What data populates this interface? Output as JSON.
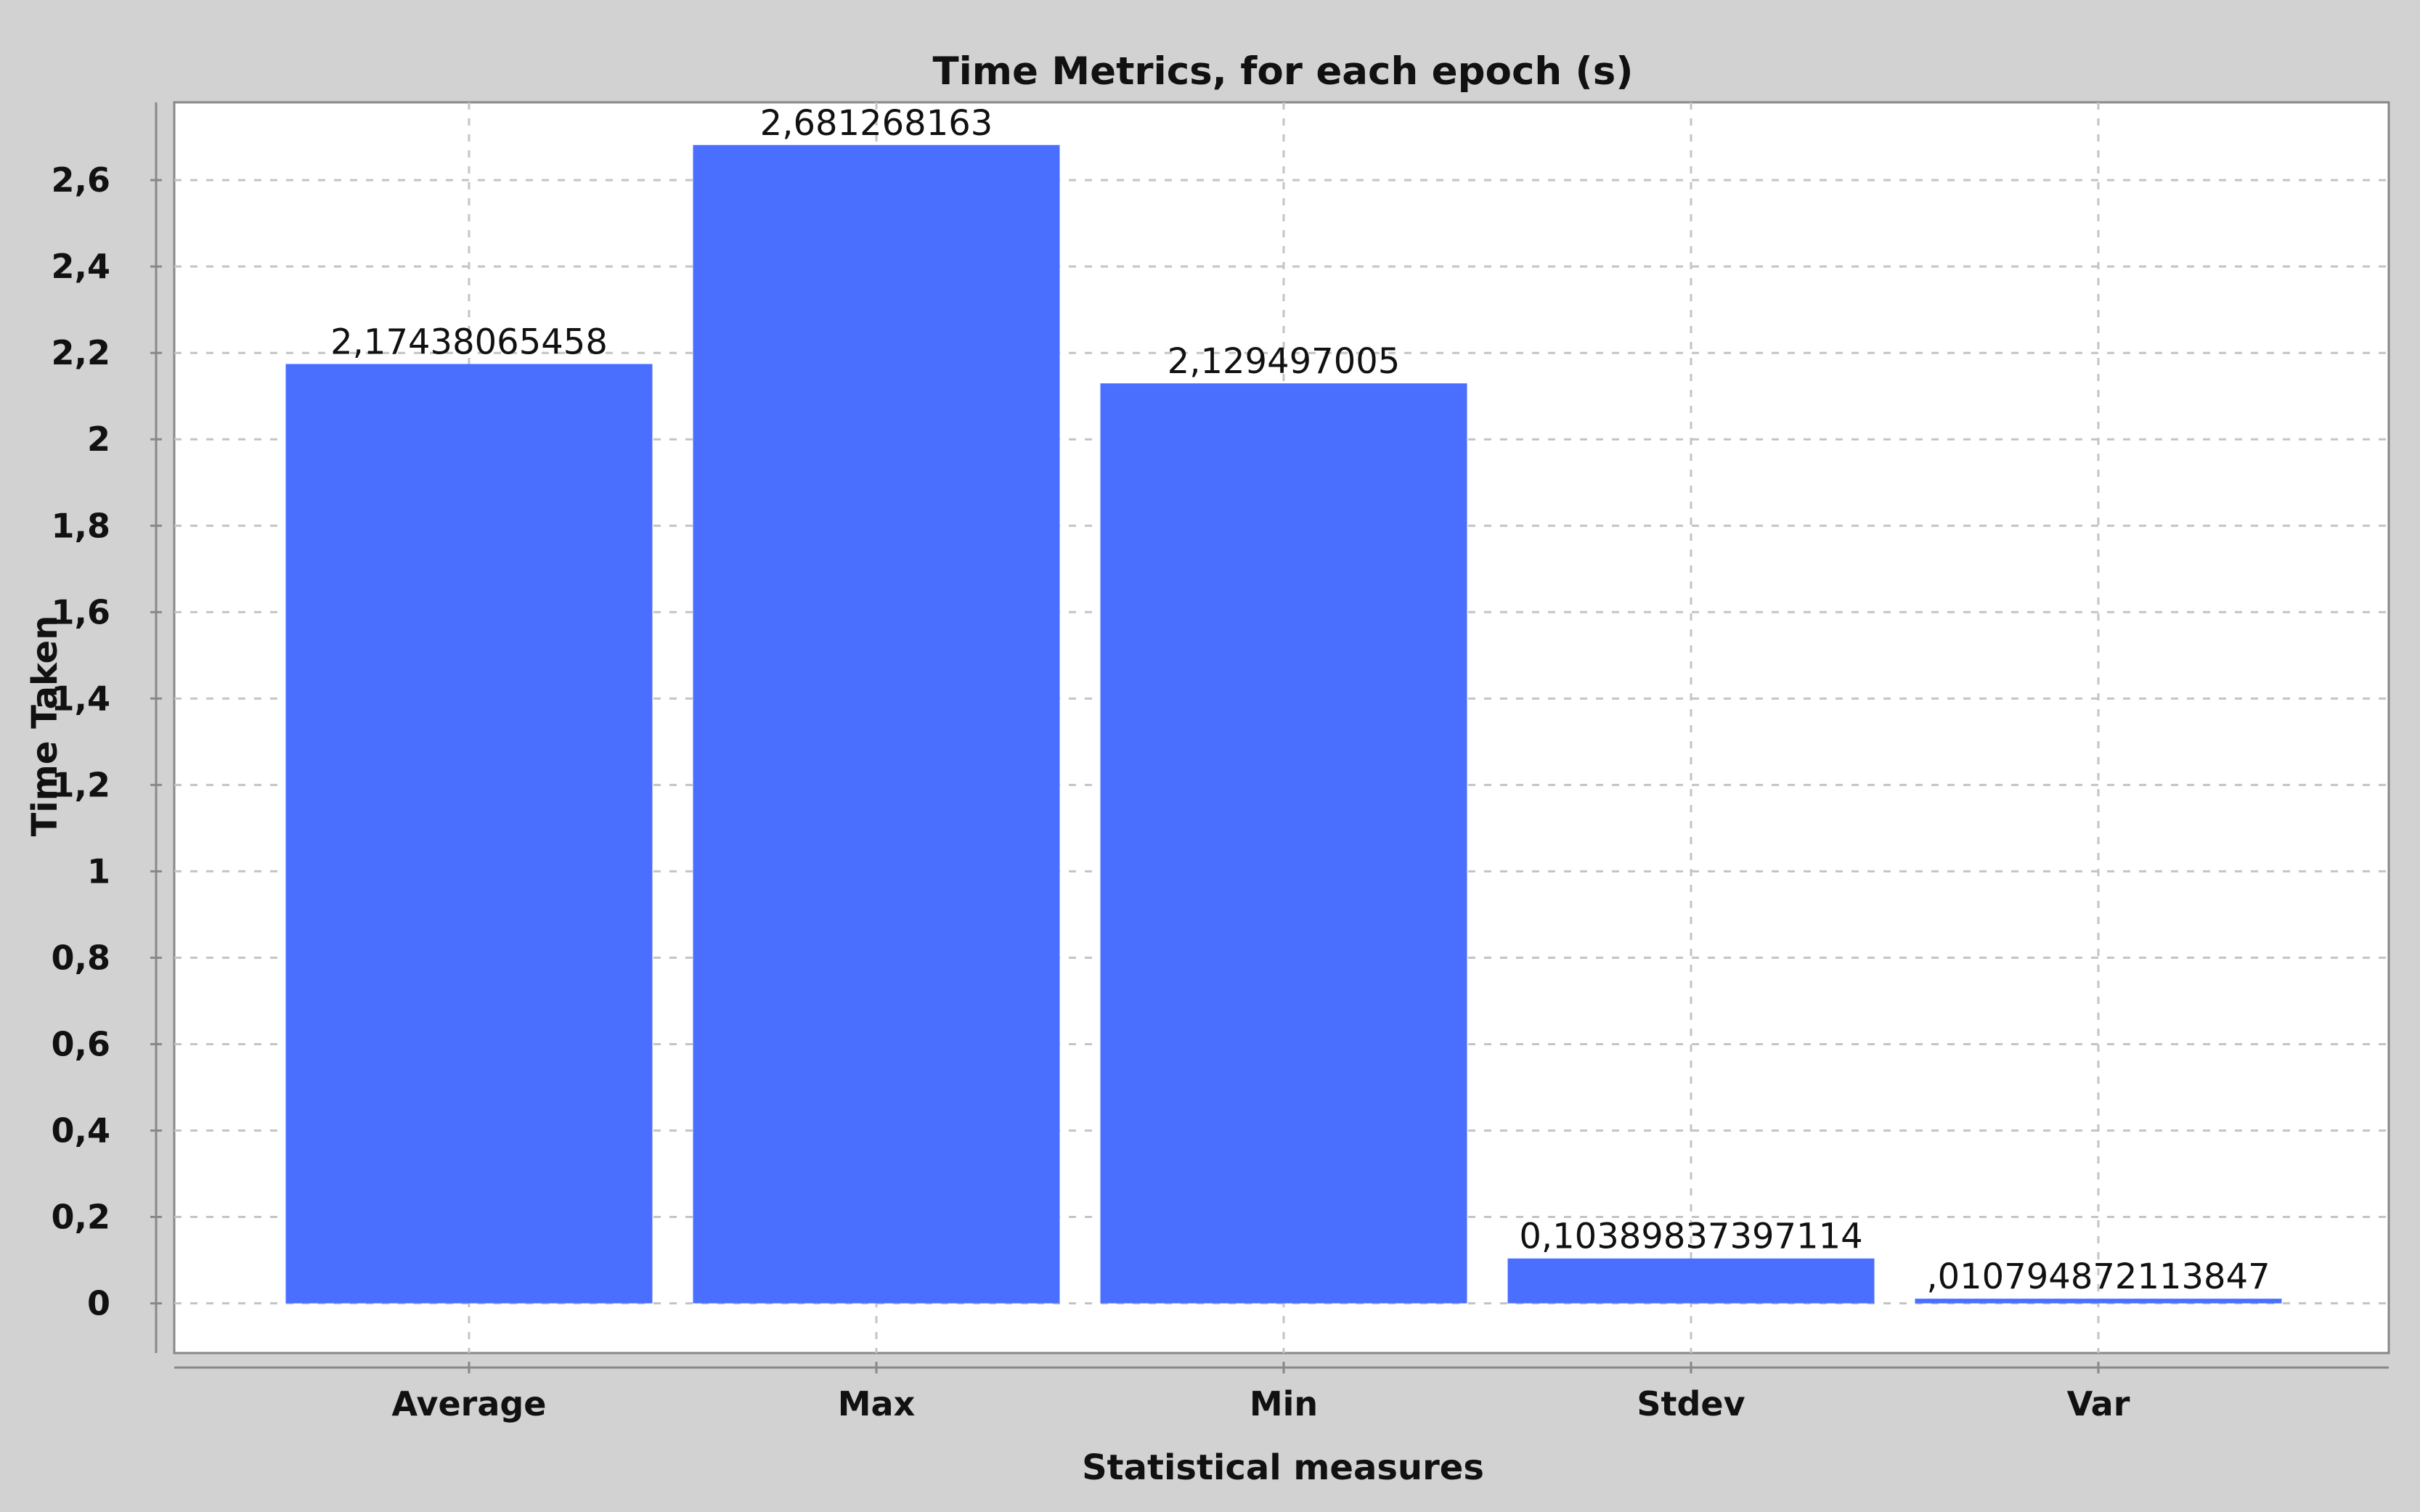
{
  "chart_data": {
    "type": "bar",
    "title": "Time Metrics, for each epoch (s)",
    "xlabel": "Statistical measures",
    "ylabel": "Time Taken",
    "categories": [
      "Average",
      "Max",
      "Min",
      "Stdev",
      "Var"
    ],
    "values": [
      2.17438065458,
      2.681268163,
      2.129497005,
      0.10389837397114,
      0.010794872113847
    ],
    "value_labels": [
      "2,17438065458",
      "2,681268163",
      "2,129497005",
      "0,10389837397114",
      ",010794872113847"
    ],
    "ylim": [
      -0.115,
      2.78
    ],
    "yticks": [
      0,
      0.2,
      0.4,
      0.6,
      0.8,
      1,
      1.2,
      1.4,
      1.6,
      1.8,
      2,
      2.2,
      2.4,
      2.6
    ],
    "ytick_labels": [
      "0",
      "0,2",
      "0,4",
      "0,6",
      "0,8",
      "1",
      "1,2",
      "1,4",
      "1,6",
      "1,8",
      "2",
      "2,2",
      "2,4",
      "2,6"
    ],
    "grid": true,
    "legend": "none",
    "bar_color": "#4a6fff",
    "plot_background": "#ffffff",
    "figure_background": "#d2d2d2",
    "grid_color": "#c4c4c4"
  }
}
